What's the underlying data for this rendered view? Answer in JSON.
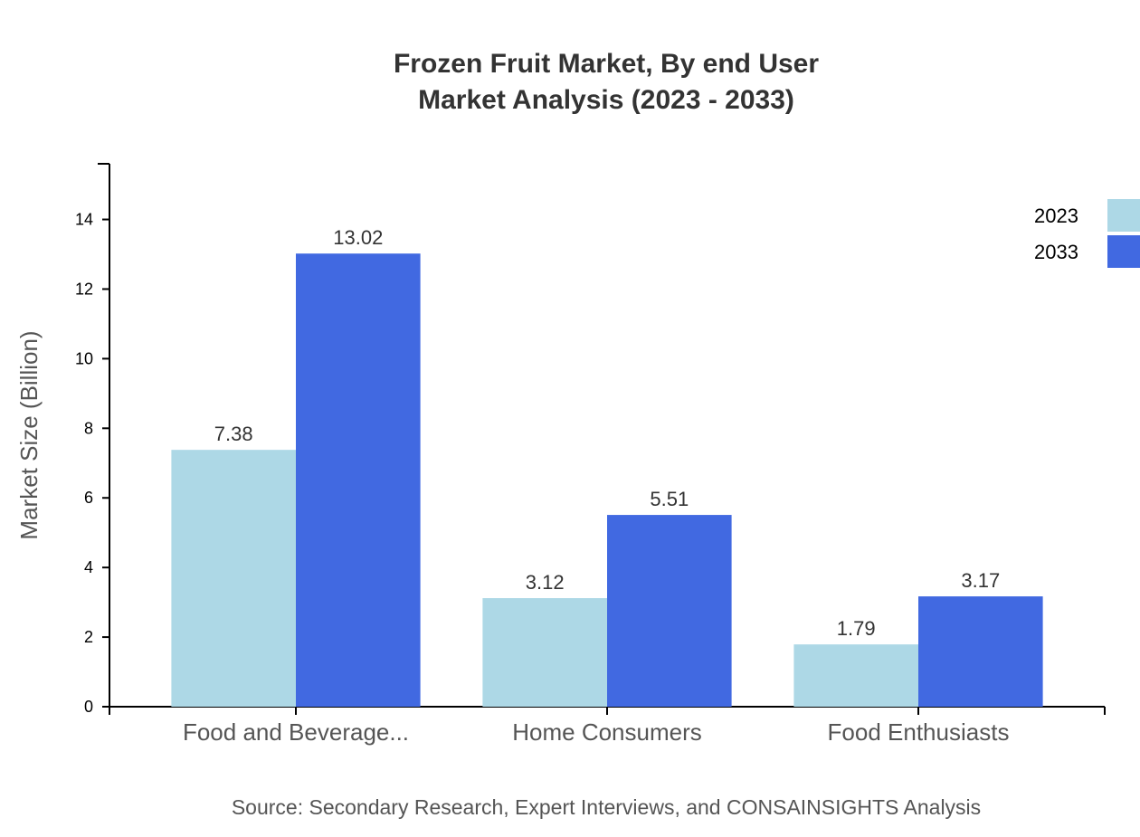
{
  "chart_data": {
    "type": "bar",
    "title": "Frozen Fruit Market, By end User",
    "subtitle": "Market Analysis (2023 - 2033)",
    "xlabel": "",
    "ylabel": "Market Size (Billion)",
    "ylim": [
      0,
      15.6
    ],
    "yticks": [
      "0",
      "2",
      "4",
      "6",
      "8",
      "10",
      "12",
      "14"
    ],
    "categories": [
      "Food and Beverage...",
      "Home Consumers",
      "Food Enthusiasts"
    ],
    "series": [
      {
        "name": "2023",
        "color": "#add8e6",
        "values": [
          7.38,
          3.12,
          1.79
        ],
        "labels": [
          "7.38",
          "3.12",
          "1.79"
        ]
      },
      {
        "name": "2033",
        "color": "#4169e1",
        "values": [
          13.02,
          5.51,
          3.17
        ],
        "labels": [
          "13.02",
          "5.51",
          "3.17"
        ]
      }
    ],
    "grid": false,
    "legend_position": "top-right",
    "source": "Source: Secondary Research, Expert Interviews, and CONSAINSIGHTS Analysis"
  }
}
